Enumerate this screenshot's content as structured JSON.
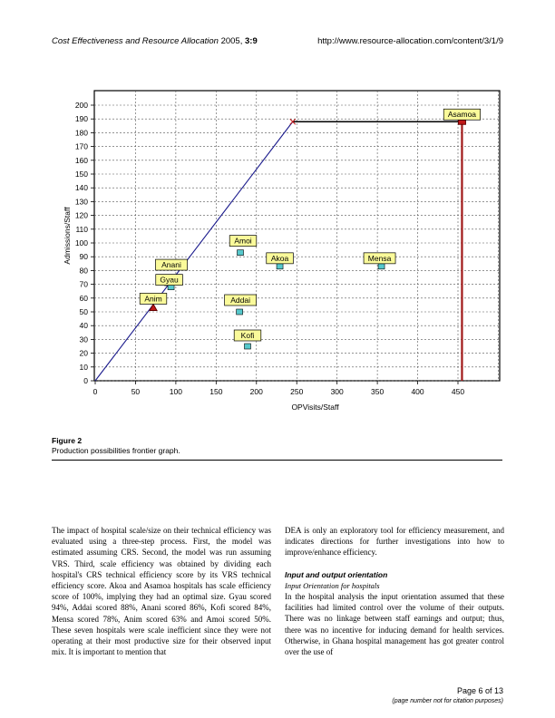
{
  "header": {
    "journal": "Cost Effectiveness and Resource Allocation",
    "year_volume": "2005, ",
    "issue": "3:9",
    "url": "http://www.resource-allocation.com/content/3/1/9"
  },
  "figure": {
    "label": "Figure 2",
    "caption": "Production possibilities frontier graph."
  },
  "chart_data": {
    "type": "scatter",
    "xlabel": "OPVisits/Staff",
    "ylabel": "Admissions/Staff",
    "xlim": [
      0,
      500
    ],
    "ylim": [
      0,
      200
    ],
    "xticks": [
      0,
      50,
      100,
      150,
      200,
      250,
      300,
      350,
      400,
      450
    ],
    "yticks": [
      0,
      10,
      20,
      30,
      40,
      50,
      60,
      70,
      80,
      90,
      100,
      110,
      120,
      130,
      140,
      150,
      160,
      170,
      180,
      190,
      200
    ],
    "grid": true,
    "frontier": [
      [
        0,
        0
      ],
      [
        245,
        188
      ],
      [
        455,
        188
      ],
      [
        455,
        0
      ]
    ],
    "points": [
      {
        "name": "Anim",
        "x": 72,
        "y": 53,
        "marker": "triangle-red"
      },
      {
        "name": "Anani",
        "x": 90,
        "y": 71,
        "marker": "square-cyan"
      },
      {
        "name": "Gyau",
        "x": 94,
        "y": 68,
        "marker": "square-cyan"
      },
      {
        "name": "Amoi",
        "x": 180,
        "y": 93,
        "marker": "square-cyan"
      },
      {
        "name": "Addai",
        "x": 179,
        "y": 50,
        "marker": "square-cyan"
      },
      {
        "name": "Kofi",
        "x": 189,
        "y": 25,
        "marker": "square-cyan"
      },
      {
        "name": "Akoa",
        "x": 229,
        "y": 83,
        "marker": "square-cyan"
      },
      {
        "name": "Mensa",
        "x": 355,
        "y": 83,
        "marker": "square-cyan"
      },
      {
        "name": "Asamoa",
        "x": 455,
        "y": 188,
        "marker": "square-red"
      }
    ]
  },
  "body": {
    "left_paragraph": "The impact of hospital scale/size on their technical efficiency was evaluated using a three-step process. First, the model was estimated assuming CRS. Second, the model was run assuming VRS. Third, scale efficiency was obtained by dividing each hospital's CRS technical efficiency score by its VRS technical efficiency score. Akoa and Asamoa hospitals has scale efficiency score of 100%, implying they had an optimal size. Gyau scored 94%, Addai scored 88%, Anani scored 86%, Kofi scored 84%, Mensa scored 78%, Anim scored 63% and Amoi scored 50%. These seven hospitals were scale inefficient since they were not operating at their most productive size for their observed input mix. It is important to mention that",
    "right_paragraph": "DEA is only an exploratory tool for efficiency measurement, and indicates directions for further investigations into how to improve/enhance efficiency.",
    "section_heading": "Input and output orientation",
    "subsection_heading": "Input Orientation for hospitals",
    "right_paragraph_2": "In the hospital analysis the input orientation assumed that these facilities had limited control over the volume of their outputs. There was no linkage between staff earnings and output; thus, there was no incentive for inducing demand for health services. Otherwise, in Ghana hospital management has got greater control over the use of"
  },
  "footer": {
    "page": "Page 6 of 13",
    "note": "(page number not for citation purposes)"
  },
  "colors": {
    "frontier_line": "#1a1a8c",
    "asamoa_line": "#a01818",
    "label_fill": "#fafa9a",
    "marker_cyan": "#56c8cc",
    "marker_red": "#c01818"
  }
}
